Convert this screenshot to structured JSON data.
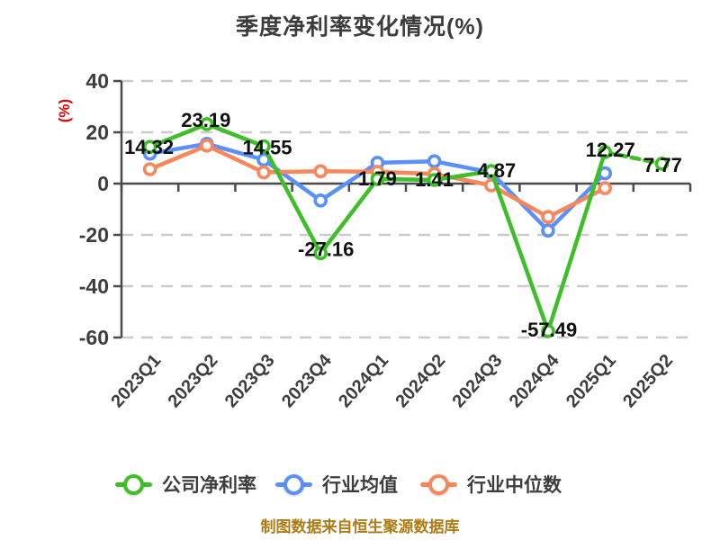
{
  "footer": "制图数据来自恒生聚源数据库",
  "chart_data": {
    "type": "line",
    "title": "季度净利率变化情况(%)",
    "ylabel": "(%)",
    "ylabel_color": "#e60000",
    "categories": [
      "2023Q1",
      "2023Q2",
      "2023Q3",
      "2023Q4",
      "2024Q1",
      "2024Q2",
      "2024Q3",
      "2024Q4",
      "2025Q1",
      "2025Q2"
    ],
    "ylim": [
      -60,
      40
    ],
    "yticks": [
      40,
      20,
      0,
      -20,
      -40,
      -60
    ],
    "grid": "horizontal-dashed",
    "legend_position": "bottom",
    "colors": {
      "grid": "#cbcbcb",
      "axis": "#4a4a4a",
      "tick_label": "#3d3d3d",
      "data_label": "#111111"
    },
    "series": [
      {
        "name": "公司净利率",
        "color": "#3ebe28",
        "values": [
          14.32,
          23.19,
          14.55,
          -27.16,
          1.79,
          1.41,
          4.87,
          -57.49,
          12.27,
          7.77
        ],
        "point_labels": [
          "14.32",
          "23.19",
          "14.55",
          "-27.16",
          "1.79",
          "1.41",
          "4.87",
          "-57.49",
          "12.27",
          "7.77"
        ],
        "dashed_from_index": 8
      },
      {
        "name": "行业均值",
        "color": "#5b8ff9",
        "values": [
          11.7,
          15.5,
          9.3,
          -6.6,
          8.1,
          8.7,
          4.3,
          -18.3,
          4.0,
          null
        ],
        "point_labels": null,
        "dashed_from_index": null
      },
      {
        "name": "行业中位数",
        "color": "#f8875c",
        "values": [
          5.6,
          14.8,
          4.4,
          4.8,
          4.6,
          3.8,
          -0.7,
          -13.0,
          -1.8,
          null
        ],
        "point_labels": null,
        "dashed_from_index": null
      }
    ]
  }
}
